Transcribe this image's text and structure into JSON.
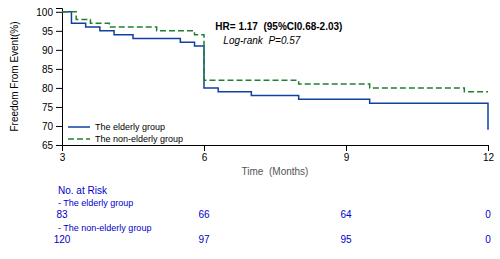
{
  "chart_data": {
    "type": "step",
    "xlabel": "Time  (Months)",
    "ylabel": "Freedom From Event(%)",
    "xlim": [
      3,
      12
    ],
    "ylim": [
      65,
      101
    ],
    "xticks": [
      3,
      6,
      9,
      12
    ],
    "yticks": [
      65,
      70,
      75,
      80,
      85,
      90,
      95,
      100
    ],
    "grid": false,
    "legend": "lower left",
    "series": [
      {
        "name": "The elderly group",
        "color": "#1040a0",
        "line_style": "solid",
        "x": [
          3,
          3.2,
          3.5,
          3.8,
          4.1,
          4.5,
          5.0,
          5.5,
          5.8,
          6.0,
          6.0,
          6.3,
          6.7,
          7.0,
          7.5,
          8.0,
          8.5,
          9.0,
          9.5,
          10.0,
          10.5,
          11.0,
          11.5,
          12.0,
          12.0
        ],
        "values": [
          100,
          97,
          96,
          95,
          94,
          93,
          93,
          92,
          91,
          91,
          80,
          79,
          79,
          78,
          78,
          77,
          77,
          77,
          76,
          76,
          76,
          76,
          76,
          76,
          69
        ]
      },
      {
        "name": "The non-elderly group",
        "color": "#208030",
        "line_style": "dashed",
        "x": [
          3,
          3.3,
          3.6,
          4.0,
          4.5,
          5.0,
          5.5,
          5.8,
          6.0,
          6.0,
          6.5,
          7.0,
          7.5,
          8.0,
          8.5,
          9.0,
          9.5,
          10.0,
          10.5,
          11.0,
          11.5,
          12.0,
          12.0
        ],
        "values": [
          100,
          98,
          97,
          96,
          96,
          95,
          95,
          94,
          94,
          82,
          82,
          82,
          82,
          81,
          81,
          81,
          80,
          80,
          80,
          80,
          79,
          79,
          79
        ]
      }
    ],
    "annotations": [
      "HR= 1.17  (95%CI0.68-2.03)",
      "Log-rank  P=0.57"
    ],
    "risk_table": {
      "title": "No. at Risk",
      "color": "#0000cc",
      "x": [
        3,
        6,
        9,
        12
      ],
      "rows": [
        {
          "label": "- The elderly group",
          "values": [
            83,
            66,
            64,
            0
          ]
        },
        {
          "label": "- The non-elderly group",
          "values": [
            120,
            97,
            95,
            0
          ]
        }
      ]
    }
  }
}
